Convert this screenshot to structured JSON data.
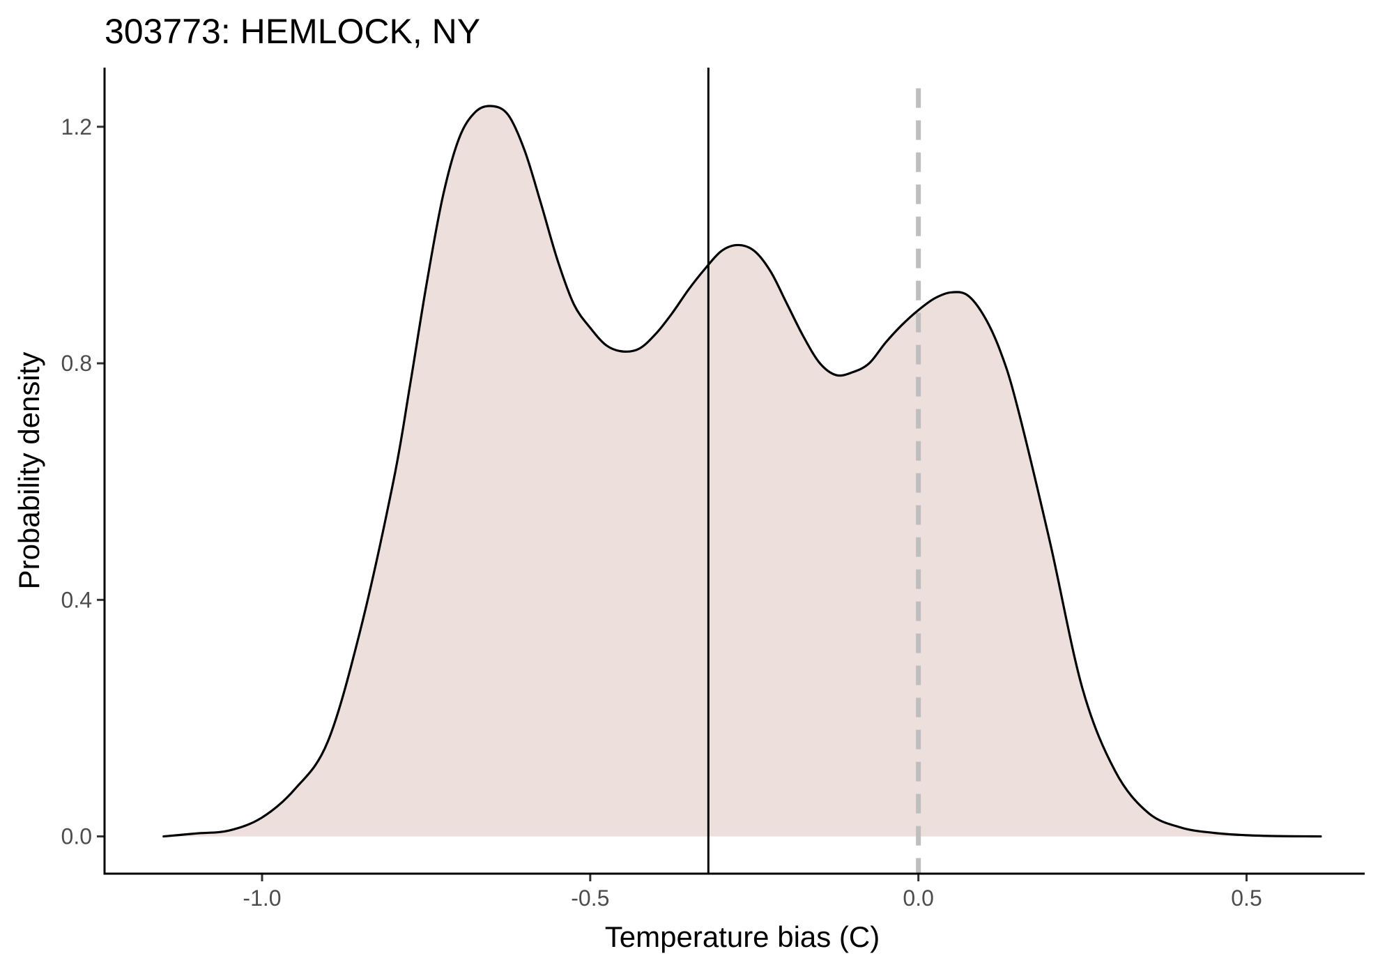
{
  "chart_data": {
    "type": "area",
    "title": "303773: HEMLOCK, NY",
    "xlabel": "Temperature bias (C)",
    "ylabel": "Probability density",
    "xlim": [
      -1.24,
      0.68
    ],
    "ylim": [
      -0.063,
      1.3
    ],
    "xticks": [
      -1.0,
      -0.5,
      0.0,
      0.5
    ],
    "xtick_labels": [
      "-1.0",
      "-0.5",
      "0.0",
      "0.5"
    ],
    "yticks": [
      0.0,
      0.4,
      0.8,
      1.2
    ],
    "ytick_labels": [
      "0.0",
      "0.4",
      "0.8",
      "1.2"
    ],
    "grid": false,
    "fill_color": "#ecdfdc",
    "line_color": "#000000",
    "density": {
      "x": [
        -1.15,
        -1.1,
        -1.05,
        -1.0,
        -0.95,
        -0.9,
        -0.85,
        -0.8,
        -0.775,
        -0.75,
        -0.725,
        -0.7,
        -0.675,
        -0.65,
        -0.625,
        -0.6,
        -0.575,
        -0.55,
        -0.525,
        -0.5,
        -0.475,
        -0.45,
        -0.425,
        -0.4,
        -0.375,
        -0.35,
        -0.325,
        -0.3,
        -0.275,
        -0.25,
        -0.225,
        -0.2,
        -0.175,
        -0.15,
        -0.125,
        -0.1,
        -0.075,
        -0.05,
        -0.025,
        0.0,
        0.025,
        0.05,
        0.075,
        0.1,
        0.125,
        0.15,
        0.2,
        0.25,
        0.3,
        0.35,
        0.4,
        0.45,
        0.5,
        0.55,
        0.6,
        0.613
      ],
      "y": [
        0.0,
        0.005,
        0.01,
        0.032,
        0.08,
        0.16,
        0.35,
        0.6,
        0.76,
        0.93,
        1.08,
        1.18,
        1.225,
        1.235,
        1.22,
        1.16,
        1.07,
        0.975,
        0.9,
        0.86,
        0.83,
        0.82,
        0.825,
        0.85,
        0.885,
        0.925,
        0.96,
        0.99,
        1.0,
        0.99,
        0.955,
        0.9,
        0.845,
        0.8,
        0.78,
        0.785,
        0.8,
        0.835,
        0.865,
        0.89,
        0.91,
        0.92,
        0.915,
        0.88,
        0.82,
        0.73,
        0.5,
        0.25,
        0.11,
        0.04,
        0.015,
        0.006,
        0.002,
        0.0005,
        0.0001,
        0.0
      ]
    },
    "vertical_lines": [
      {
        "x": -0.32,
        "style": "solid",
        "color": "#000000"
      },
      {
        "x": 0.0,
        "style": "dashed",
        "color": "#bebebe",
        "ymax": 1.265
      }
    ]
  }
}
